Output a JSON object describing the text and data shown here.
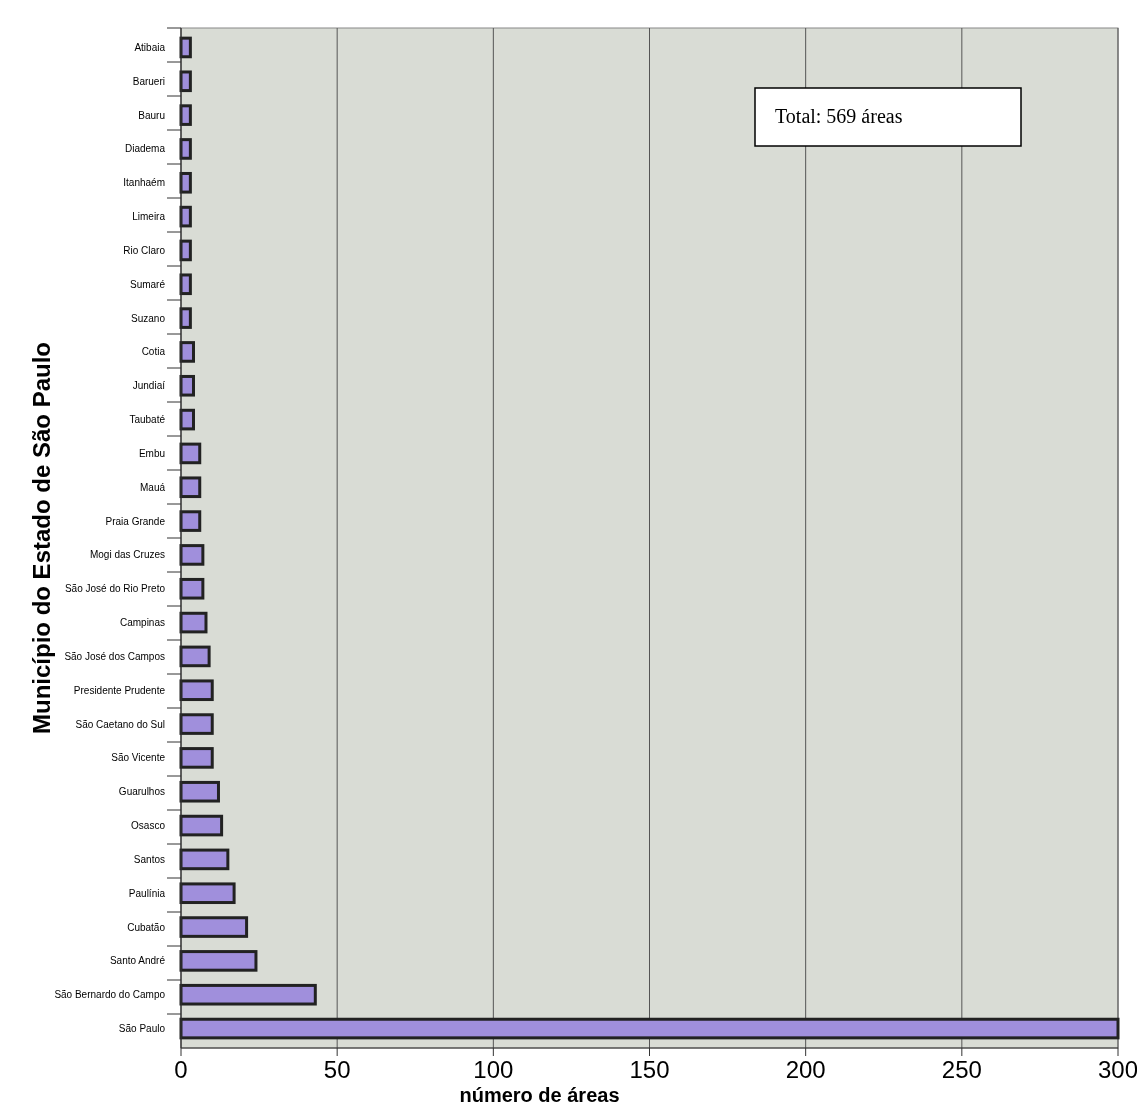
{
  "chart_data": {
    "type": "bar",
    "orientation": "horizontal",
    "xlabel": "número de áreas",
    "ylabel": "Município do Estado de São Paulo",
    "annotations": [
      "Total: 569 áreas"
    ],
    "categories": [
      "Atibaia",
      "Barueri",
      "Bauru",
      "Diadema",
      "Itanhaém",
      "Limeira",
      "Rio Claro",
      "Sumaré",
      "Suzano",
      "Cotia",
      "Jundiaí",
      "Taubaté",
      "Embu",
      "Mauá",
      "Praia Grande",
      "Mogi das Cruzes",
      "São José do Rio Preto",
      "Campinas",
      "São José dos Campos",
      "Presidente Prudente",
      "São Caetano do Sul",
      "São Vicente",
      "Guarulhos",
      "Osasco",
      "Santos",
      "Paulínia",
      "Cubatão",
      "Santo André",
      "São Bernardo do Campo",
      "São Paulo"
    ],
    "values": [
      3,
      3,
      3,
      3,
      3,
      3,
      3,
      3,
      3,
      4,
      4,
      4,
      6,
      6,
      6,
      7,
      7,
      8,
      9,
      10,
      10,
      10,
      12,
      13,
      15,
      17,
      21,
      24,
      43,
      300
    ],
    "color": "#a08fdc",
    "xlim": [
      0,
      300
    ],
    "xticks": [
      0,
      50,
      100,
      150,
      200,
      250,
      300
    ],
    "grid": "x"
  }
}
